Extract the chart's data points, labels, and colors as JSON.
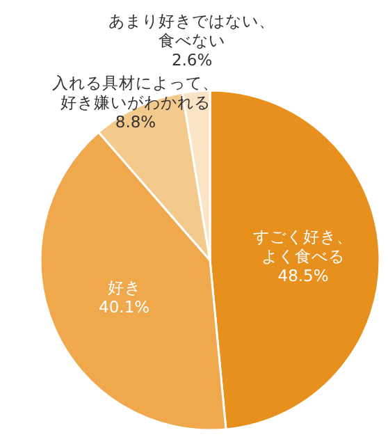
{
  "chart_data": {
    "type": "pie",
    "categories": [
      "すごく好き、よく食べる",
      "好き",
      "入れる具材によって、好き嫌いがわかれる",
      "あまり好きではない、食べない"
    ],
    "values": [
      48.5,
      40.1,
      8.8,
      2.6
    ],
    "value_labels": [
      "48.5%",
      "40.1%",
      "8.8%",
      "2.6%"
    ],
    "colors": [
      "#e8901e",
      "#efa84c",
      "#f4c98c",
      "#fbe4c6"
    ]
  }
}
